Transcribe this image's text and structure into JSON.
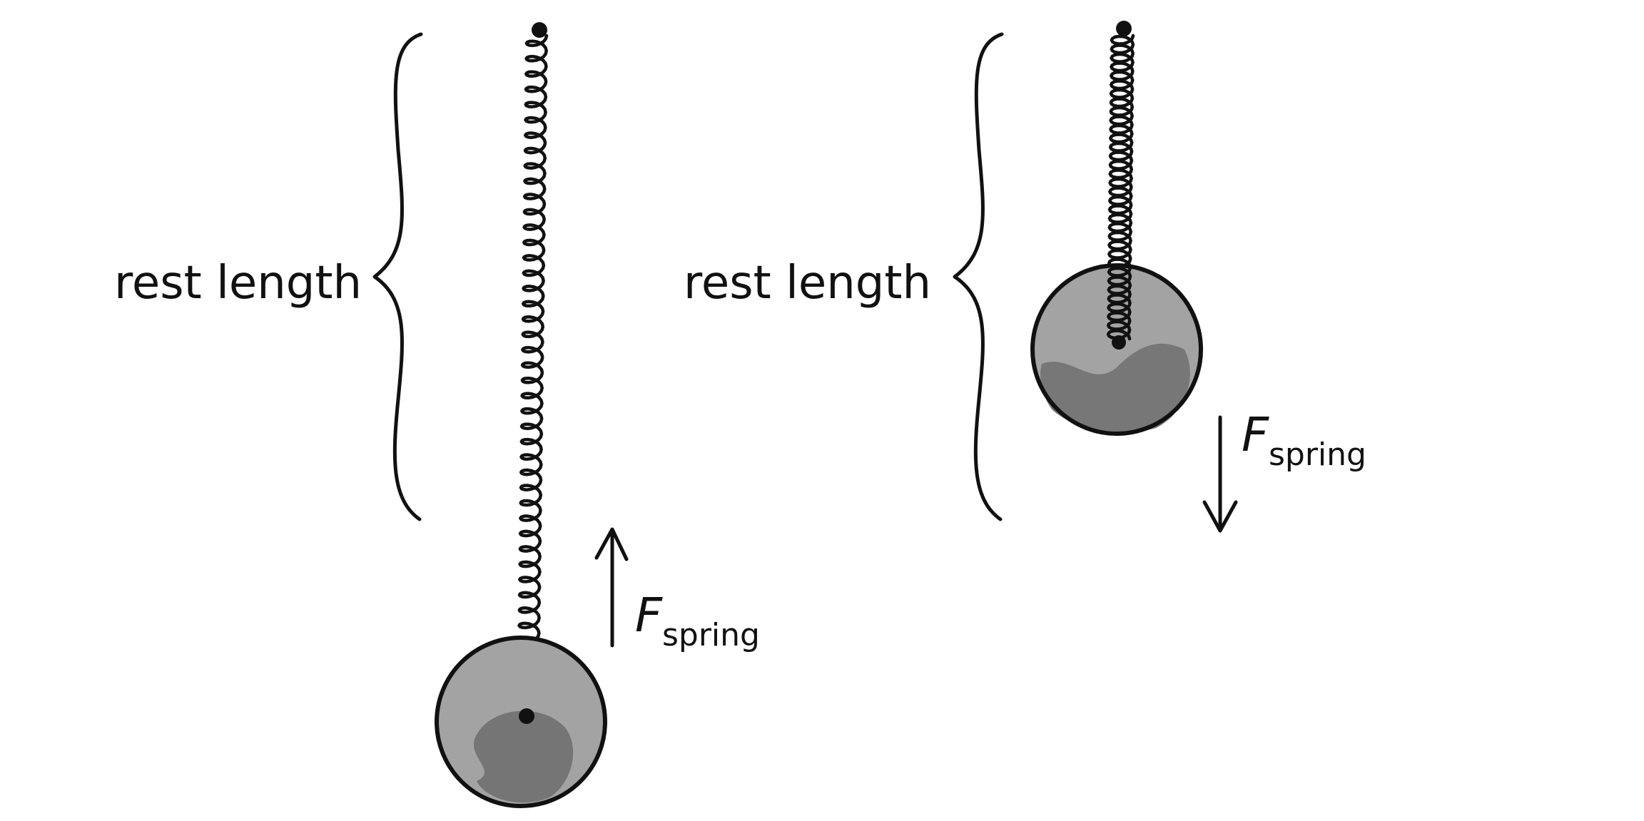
{
  "left_panel": {
    "rest_length_label": "rest length",
    "force_symbol": "F",
    "force_subscript": "spring",
    "force_direction": "up",
    "spring_state": "stretched"
  },
  "right_panel": {
    "rest_length_label": "rest length",
    "force_symbol": "F",
    "force_subscript": "spring",
    "force_direction": "down",
    "spring_state": "compressed"
  },
  "colors": {
    "ink": "#111111",
    "bob_fill": "#9c9c9c",
    "bob_shade": "#737373",
    "background": "#ffffff"
  }
}
